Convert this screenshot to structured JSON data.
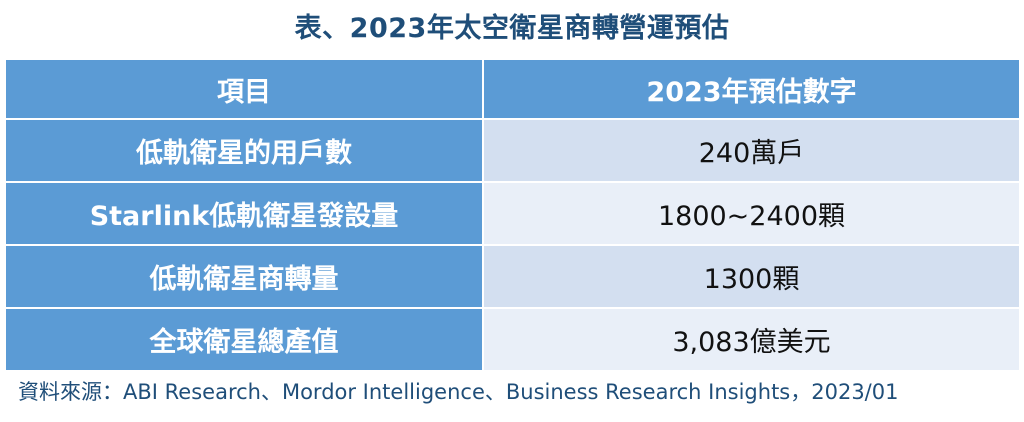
{
  "title": "表、2023年太空衛星商轉營運預估",
  "table": {
    "headers": [
      "項目",
      "2023年預估數字"
    ],
    "rows": [
      {
        "label": "低軌衛星的用戶數",
        "value": "240萬戶"
      },
      {
        "label": "Starlink低軌衛星發設量",
        "value": "1800~2400顆"
      },
      {
        "label": "低軌衛星商轉量",
        "value": "1300顆"
      },
      {
        "label": "全球衛星總產值",
        "value": "3,083億美元"
      }
    ]
  },
  "source": "資料來源：ABI Research、Mordor Intelligence、Business Research Insights，2023/01",
  "colors": {
    "title": "#1f4e79",
    "header_bg": "#5b9bd5",
    "row_dark": "#d3dff0",
    "row_light": "#e9eff8"
  }
}
